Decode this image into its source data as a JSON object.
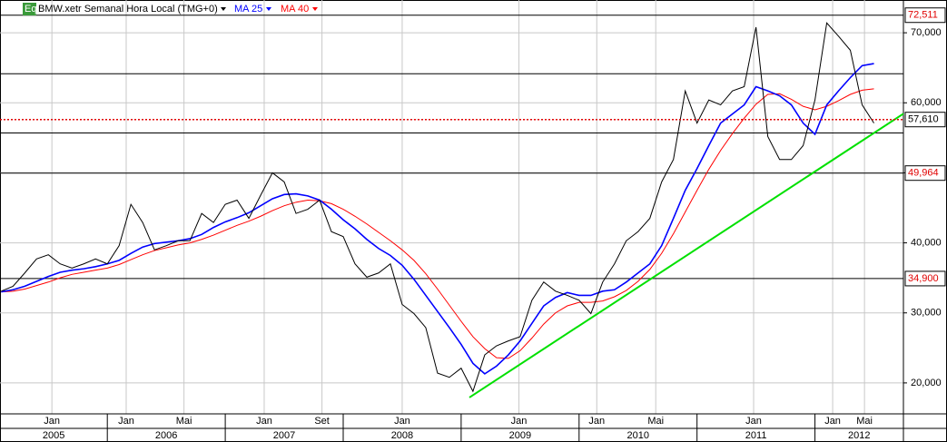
{
  "chart_data": {
    "type": "line",
    "badge": "Eq",
    "title": "BMW.xetr Semanal Hora Local (TMG+0)",
    "x": [
      2005.1,
      2005.2,
      2005.3,
      2005.4,
      2005.5,
      2005.6,
      2005.7,
      2005.8,
      2005.9,
      2006.0,
      2006.1,
      2006.2,
      2006.3,
      2006.4,
      2006.5,
      2006.6,
      2006.7,
      2006.8,
      2006.9,
      2007.0,
      2007.1,
      2007.2,
      2007.3,
      2007.4,
      2007.5,
      2007.6,
      2007.7,
      2007.8,
      2007.9,
      2008.0,
      2008.1,
      2008.2,
      2008.3,
      2008.4,
      2008.5,
      2008.6,
      2008.7,
      2008.8,
      2008.9,
      2009.0,
      2009.1,
      2009.2,
      2009.3,
      2009.4,
      2009.5,
      2009.6,
      2009.7,
      2009.8,
      2009.9,
      2010.0,
      2010.1,
      2010.2,
      2010.3,
      2010.4,
      2010.5,
      2010.6,
      2010.7,
      2010.8,
      2010.9,
      2011.0,
      2011.1,
      2011.2,
      2011.3,
      2011.4,
      2011.5,
      2011.6,
      2011.7,
      2011.8,
      2011.9,
      2012.0,
      2012.1,
      2012.2,
      2012.3,
      2012.4,
      2012.5
    ],
    "series": [
      {
        "color": "#000000",
        "values": [
          33100,
          33800,
          35700,
          37700,
          38300,
          37000,
          36400,
          37000,
          37700,
          37000,
          39600,
          45500,
          42900,
          39000,
          39600,
          40300,
          40300,
          44200,
          42900,
          45500,
          46100,
          43500,
          46800,
          50000,
          48700,
          44200,
          44800,
          46100,
          41600,
          40900,
          37000,
          35100,
          35700,
          37000,
          31200,
          29900,
          27900,
          21400,
          20800,
          22100,
          18800,
          24000,
          25300,
          26000,
          26600,
          31800,
          34400,
          33100,
          32500,
          31800,
          29900,
          34400,
          37000,
          40300,
          41600,
          43500,
          48700,
          51900,
          61700,
          57100,
          60400,
          59700,
          61700,
          62300,
          70800,
          55200,
          51900,
          51900,
          53900,
          60400,
          71400,
          69500,
          67500,
          59700,
          57100
        ]
      },
      {
        "name": "MA 25",
        "color": "#0000ff",
        "values": [
          33000,
          33300,
          33800,
          34500,
          35200,
          35800,
          36100,
          36300,
          36600,
          37000,
          37500,
          38500,
          39400,
          39900,
          40100,
          40300,
          40600,
          41200,
          42200,
          43000,
          43600,
          44300,
          45300,
          46300,
          46900,
          47000,
          46700,
          46100,
          44800,
          43300,
          42000,
          40500,
          39200,
          38200,
          36800,
          34800,
          32500,
          30200,
          27900,
          25500,
          22800,
          21300,
          22400,
          24000,
          26000,
          28500,
          31000,
          32200,
          32900,
          32500,
          32500,
          33100,
          33300,
          34400,
          35700,
          37000,
          39600,
          43500,
          47500,
          50600,
          53900,
          57100,
          58400,
          59700,
          62300,
          61700,
          61000,
          59700,
          57100,
          55500,
          59700,
          61700,
          63600,
          65300,
          65600
        ]
      },
      {
        "name": "MA 40",
        "color": "#ff0000",
        "values": [
          33000,
          33100,
          33400,
          33900,
          34400,
          35000,
          35500,
          35800,
          36100,
          36400,
          36900,
          37600,
          38300,
          38900,
          39300,
          39700,
          40000,
          40500,
          41100,
          41800,
          42500,
          43100,
          43800,
          44600,
          45300,
          45800,
          46100,
          46000,
          45600,
          44800,
          43800,
          42700,
          41500,
          40300,
          39000,
          37500,
          35600,
          33400,
          31100,
          28800,
          26600,
          24900,
          23600,
          23500,
          24600,
          26400,
          28400,
          30000,
          31000,
          31500,
          31500,
          31700,
          32300,
          33200,
          34500,
          36200,
          38500,
          41300,
          44400,
          47500,
          50500,
          53200,
          55600,
          57800,
          59800,
          61200,
          61300,
          60500,
          59500,
          59000,
          59500,
          60300,
          61200,
          61800,
          62000
        ]
      }
    ],
    "trendline": {
      "color": "#00e000",
      "x": [
        2009.07,
        2012.75
      ],
      "values": [
        17920,
        58440
      ]
    },
    "levels": [
      {
        "value": 72511,
        "label": "72,511"
      },
      {
        "value": 49964,
        "label": "49,964"
      },
      {
        "value": 34900,
        "label": "34,900"
      }
    ],
    "unlabeled_levels": [
      64150,
      55700
    ],
    "last_price": {
      "value": 57610,
      "label": "57,610"
    },
    "xlim": [
      2005.09,
      2012.75
    ],
    "ylim": [
      15580,
      74680
    ],
    "yticks": [
      {
        "value": 20000,
        "label": "20,000"
      },
      {
        "value": 30000,
        "label": "30,000"
      },
      {
        "value": 40000,
        "label": "40,000"
      },
      {
        "value": 50000,
        "label": "50,000"
      },
      {
        "value": 60000,
        "label": "60,000"
      },
      {
        "value": 70000,
        "label": "70,000"
      }
    ],
    "xticks": [
      {
        "value": 2005.53,
        "label": "Jan"
      },
      {
        "value": 2006.16,
        "label": "Jan"
      },
      {
        "value": 2006.65,
        "label": "Mai"
      },
      {
        "value": 2007.33,
        "label": "Jan"
      },
      {
        "value": 2007.82,
        "label": "Set"
      },
      {
        "value": 2008.5,
        "label": "Jan"
      },
      {
        "value": 2009.49,
        "label": "Jan"
      },
      {
        "value": 2010.15,
        "label": "Jan"
      },
      {
        "value": 2010.65,
        "label": "Mai"
      },
      {
        "value": 2011.48,
        "label": "Jan"
      },
      {
        "value": 2012.15,
        "label": "Jan"
      },
      {
        "value": 2012.42,
        "label": "Mai"
      }
    ],
    "years": [
      2005,
      2006,
      2007,
      2008,
      2009,
      2010,
      2011,
      2012
    ],
    "grid": true
  }
}
